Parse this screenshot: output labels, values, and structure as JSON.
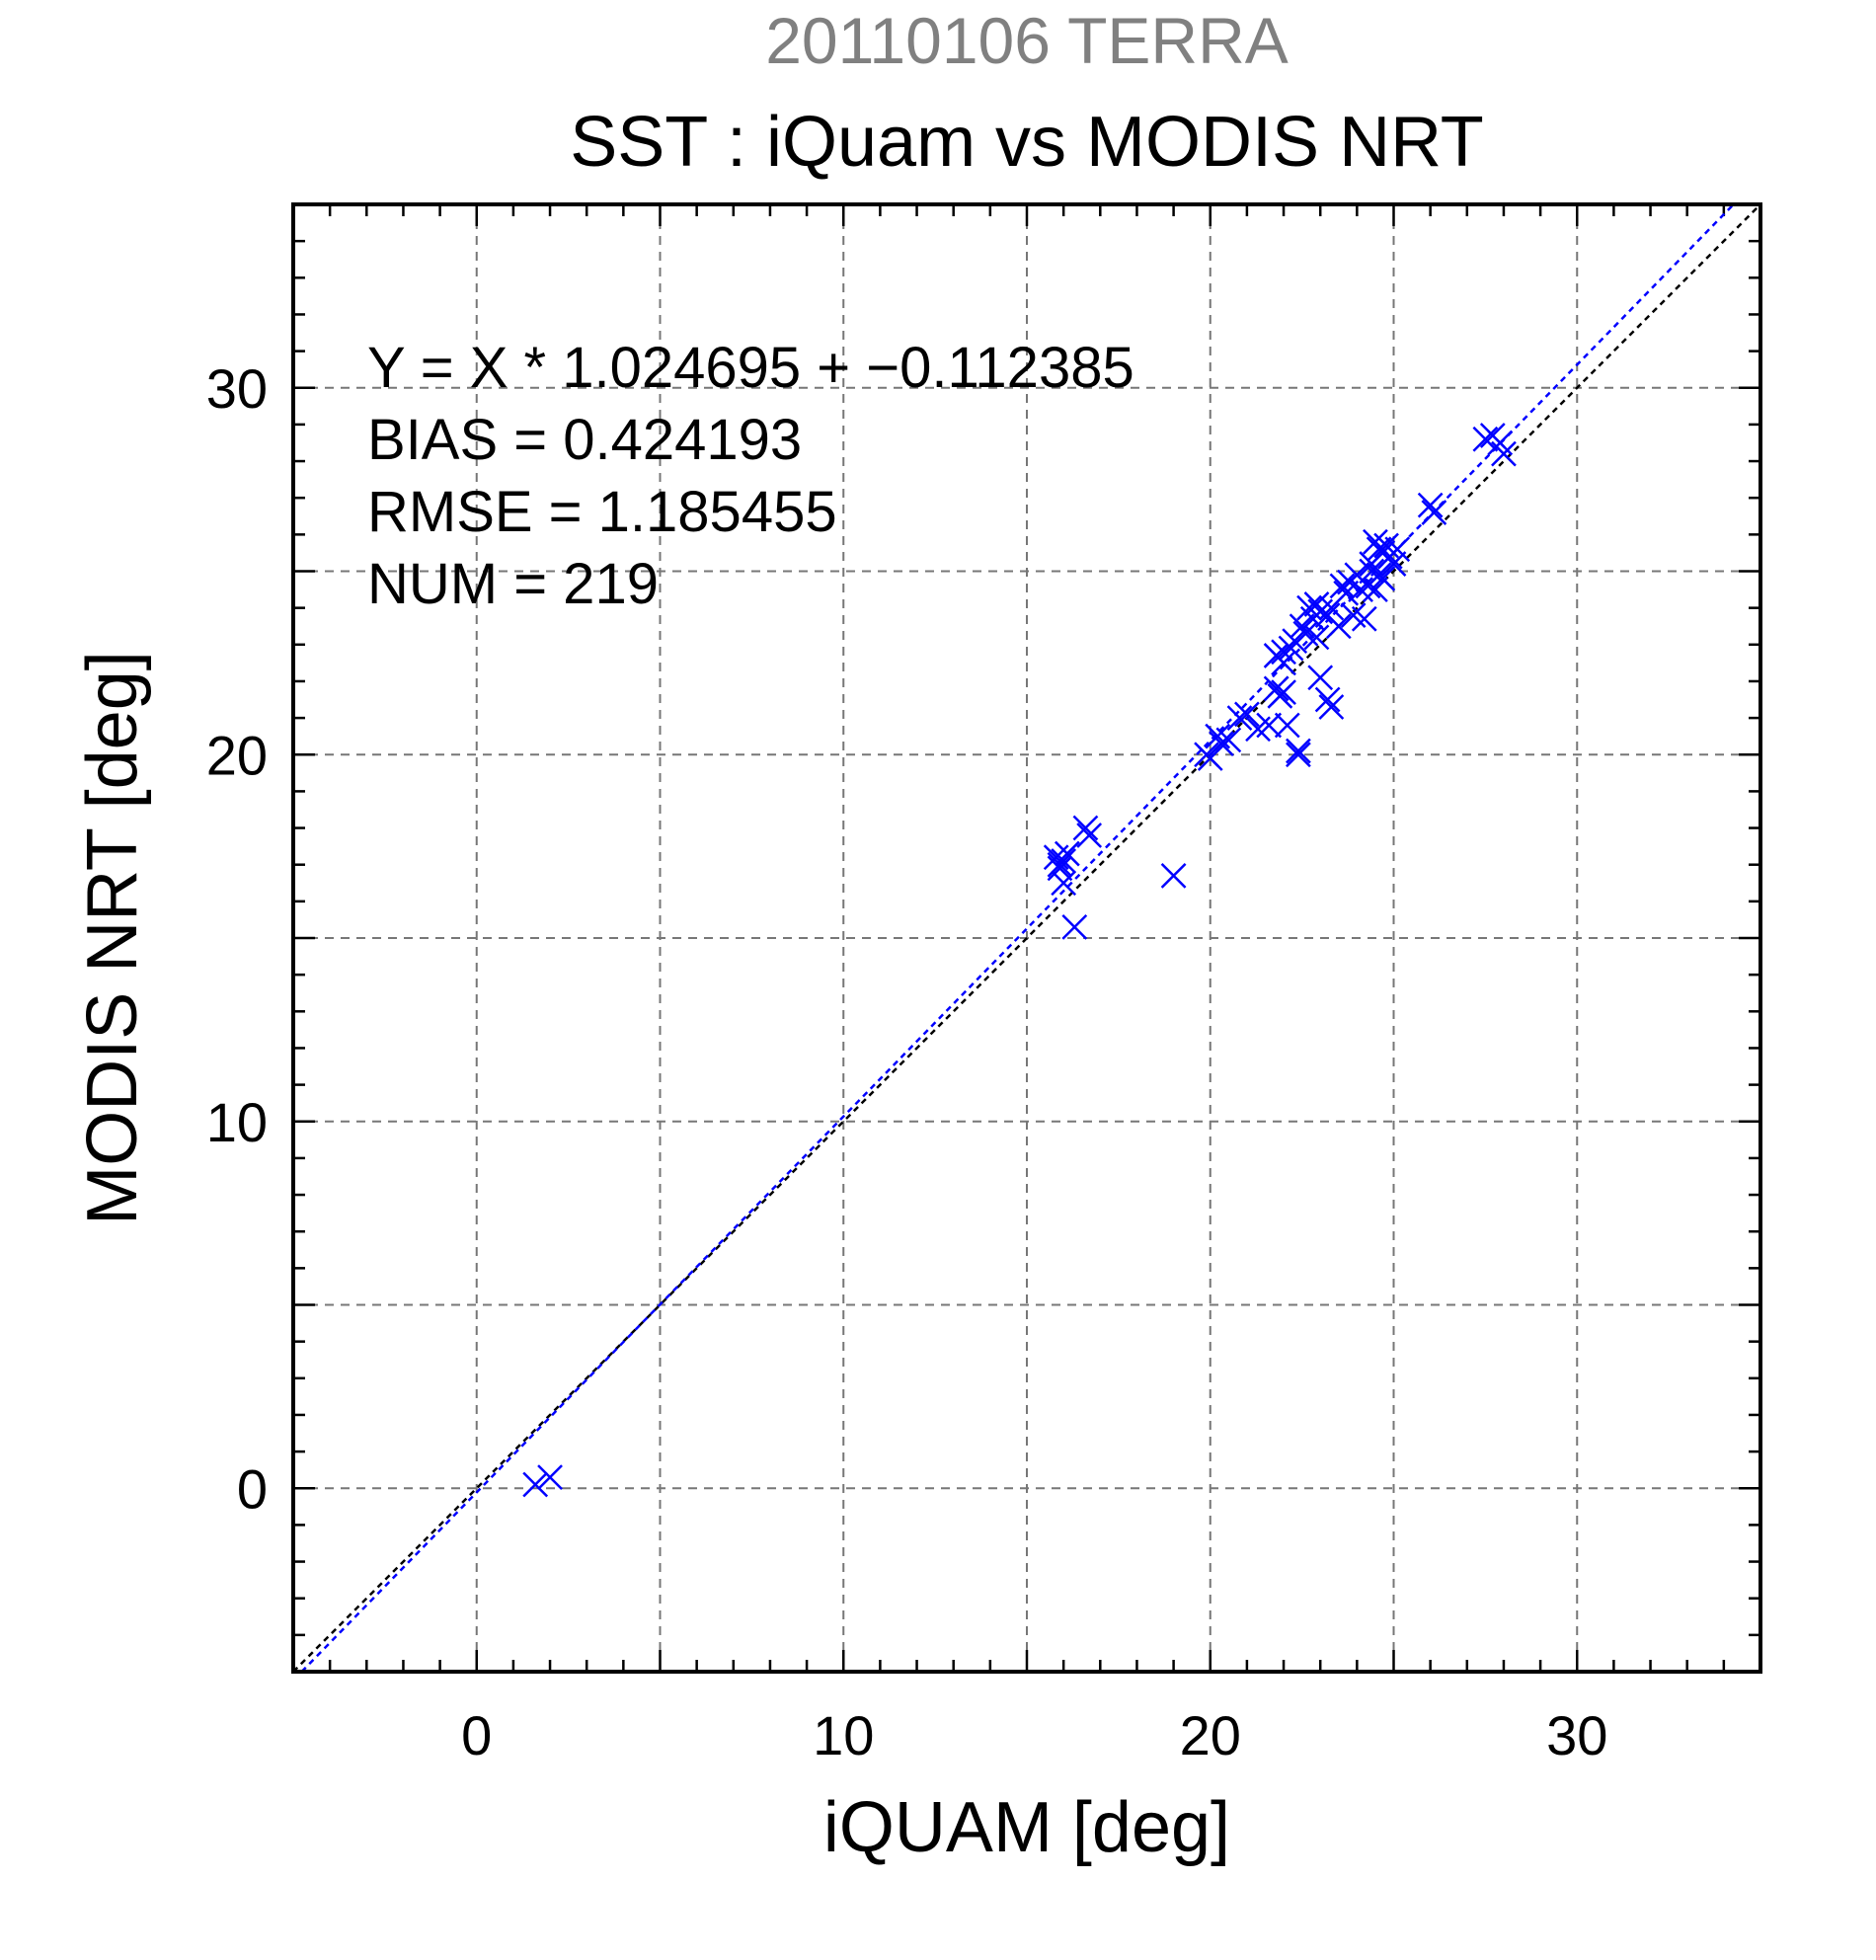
{
  "chart_data": {
    "type": "scatter",
    "title": "20110106 TERRA",
    "subtitle": "SST : iQuam vs MODIS NRT",
    "xlabel": "iQUAM [deg]",
    "ylabel": "MODIS NRT [deg]",
    "xlim": [
      -5,
      35
    ],
    "ylim": [
      -5,
      35
    ],
    "x_ticks": [
      0,
      10,
      20,
      30
    ],
    "y_ticks": [
      0,
      10,
      20,
      30
    ],
    "x_tick_labels": [
      "0",
      "10",
      "20",
      "30"
    ],
    "y_tick_labels": [
      "0",
      "10",
      "20",
      "30"
    ],
    "grid": true,
    "grid_step": 5,
    "minor_tick_step": 1,
    "annotations": [
      "Y = X * 1.024695 + −0.112385",
      "BIAS = 0.424193",
      "RMSE = 1.185455",
      "NUM = 219"
    ],
    "fit_line": {
      "slope": 1.024695,
      "intercept": -0.112385,
      "color": "#0000ff"
    },
    "identity_line": {
      "slope": 1,
      "intercept": 0,
      "color": "#000000"
    },
    "colors": {
      "title": "#808080",
      "subtitle": "#000000",
      "points": "#0000ff",
      "grid": "#777777"
    },
    "series": [
      {
        "marker": "x",
        "color": "#0000ff",
        "points": [
          [
            1.6,
            0.1
          ],
          [
            2.0,
            0.3
          ],
          [
            15.8,
            17.2
          ],
          [
            15.9,
            17.0
          ],
          [
            16.0,
            17.1
          ],
          [
            15.9,
            16.9
          ],
          [
            16.1,
            17.3
          ],
          [
            16.0,
            16.5
          ],
          [
            16.3,
            15.3
          ],
          [
            16.6,
            18.0
          ],
          [
            16.7,
            17.8
          ],
          [
            19.0,
            16.7
          ],
          [
            19.9,
            20.0
          ],
          [
            20.0,
            19.9
          ],
          [
            20.2,
            20.5
          ],
          [
            20.3,
            20.3
          ],
          [
            20.5,
            20.4
          ],
          [
            20.8,
            21.0
          ],
          [
            21.0,
            21.1
          ],
          [
            21.3,
            20.7
          ],
          [
            21.6,
            20.8
          ],
          [
            21.8,
            21.8
          ],
          [
            21.9,
            21.6
          ],
          [
            22.0,
            22.5
          ],
          [
            22.0,
            21.7
          ],
          [
            22.1,
            20.8
          ],
          [
            21.8,
            22.7
          ],
          [
            22.0,
            22.8
          ],
          [
            22.2,
            22.9
          ],
          [
            22.3,
            23.1
          ],
          [
            22.4,
            20.1
          ],
          [
            22.4,
            20.0
          ],
          [
            22.5,
            23.5
          ],
          [
            22.6,
            23.3
          ],
          [
            22.7,
            24.0
          ],
          [
            22.8,
            23.7
          ],
          [
            22.9,
            24.1
          ],
          [
            23.0,
            23.9
          ],
          [
            22.9,
            23.2
          ],
          [
            23.0,
            22.1
          ],
          [
            23.2,
            23.8
          ],
          [
            23.3,
            24.0
          ],
          [
            23.2,
            21.5
          ],
          [
            23.3,
            21.3
          ],
          [
            23.5,
            23.5
          ],
          [
            23.6,
            24.6
          ],
          [
            23.7,
            24.4
          ],
          [
            23.8,
            24.7
          ],
          [
            23.9,
            23.8
          ],
          [
            24.0,
            24.9
          ],
          [
            24.1,
            24.5
          ],
          [
            24.2,
            23.7
          ],
          [
            24.3,
            24.6
          ],
          [
            24.4,
            25.2
          ],
          [
            24.5,
            25.8
          ],
          [
            24.5,
            24.5
          ],
          [
            24.6,
            25.6
          ],
          [
            24.6,
            24.9
          ],
          [
            24.7,
            25.5
          ],
          [
            24.8,
            25.7
          ],
          [
            24.9,
            25.4
          ],
          [
            25.0,
            25.2
          ],
          [
            25.1,
            25.6
          ],
          [
            24.4,
            25.0
          ],
          [
            24.7,
            24.8
          ],
          [
            26.0,
            26.8
          ],
          [
            26.1,
            26.6
          ],
          [
            27.5,
            28.6
          ],
          [
            27.7,
            28.7
          ],
          [
            27.9,
            28.5
          ],
          [
            28.0,
            28.2
          ]
        ]
      }
    ]
  }
}
